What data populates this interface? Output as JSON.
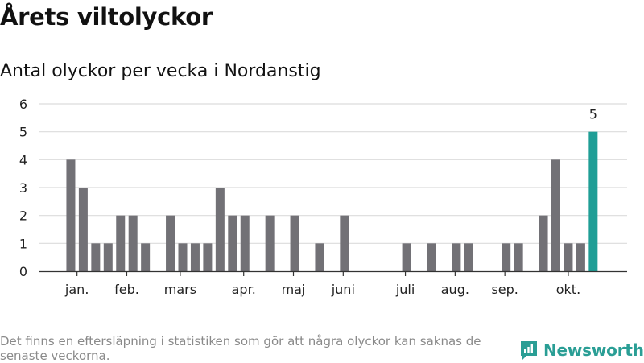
{
  "title": "Årets viltolyckor",
  "subtitle": "Antal olyckor per vecka i Nordanstig",
  "footnote": "Det finns en eftersläpning i statistiken som gör att några olyckor kan saknas de senaste veckorna.",
  "brand": "Newsworthy",
  "colors": {
    "bar": "#727176",
    "highlight": "#1f9e96",
    "grid": "#dcdcdc",
    "axis": "#333333",
    "brand": "#2a9e95"
  },
  "chart_data": {
    "type": "bar",
    "title": "Antal olyckor per vecka i Nordanstig",
    "xlabel": "",
    "ylabel": "",
    "ylim": [
      0,
      6
    ],
    "yticks": [
      0,
      1,
      2,
      3,
      4,
      5,
      6
    ],
    "grid": true,
    "month_labels": [
      {
        "label": "jan.",
        "week": 2.5
      },
      {
        "label": "feb.",
        "week": 6.5
      },
      {
        "label": "mars",
        "week": 10.8
      },
      {
        "label": "apr.",
        "week": 15.9
      },
      {
        "label": "maj",
        "week": 19.9
      },
      {
        "label": "juni",
        "week": 23.9
      },
      {
        "label": "juli",
        "week": 28.9
      },
      {
        "label": "aug.",
        "week": 32.9
      },
      {
        "label": "sep.",
        "week": 36.9
      },
      {
        "label": "okt.",
        "week": 42.0
      }
    ],
    "weeks": [
      1,
      2,
      3,
      4,
      5,
      6,
      7,
      8,
      9,
      10,
      11,
      12,
      13,
      14,
      15,
      16,
      17,
      18,
      19,
      20,
      21,
      22,
      23,
      24,
      25,
      26,
      27,
      28,
      29,
      30,
      31,
      32,
      33,
      34,
      35,
      36,
      37,
      38,
      39,
      40,
      41,
      42,
      43,
      44,
      45,
      46
    ],
    "values": [
      0,
      4,
      3,
      1,
      1,
      2,
      2,
      1,
      0,
      2,
      1,
      1,
      1,
      3,
      2,
      2,
      0,
      2,
      0,
      2,
      0,
      1,
      0,
      2,
      0,
      0,
      0,
      0,
      1,
      0,
      1,
      0,
      1,
      1,
      0,
      0,
      1,
      1,
      0,
      2,
      4,
      1,
      1,
      5,
      0,
      0
    ],
    "highlight_index": 43,
    "data_labels": [
      {
        "index": 43,
        "text": "5"
      }
    ]
  }
}
